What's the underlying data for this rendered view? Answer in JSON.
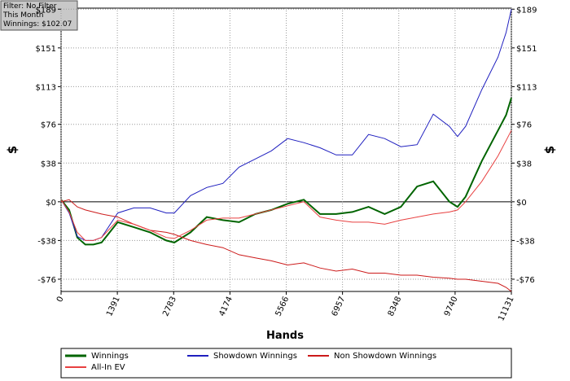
{
  "chart_data": {
    "type": "line",
    "filter_box": [
      "Filter: No Filter",
      "This Month",
      "Winnings: $102.07"
    ],
    "x_label": "Hands",
    "y_label": "$",
    "xlim": [
      0,
      11131
    ],
    "xticks": [
      0,
      1391,
      2783,
      4174,
      5566,
      6957,
      8348,
      9740,
      11131
    ],
    "ylim": [
      -88,
      190
    ],
    "yticks": [
      {
        "value": 189,
        "label": "$189"
      },
      {
        "value": 151,
        "label": "$151"
      },
      {
        "value": 113,
        "label": "$113"
      },
      {
        "value": 76,
        "label": "$76"
      },
      {
        "value": 38,
        "label": "$38"
      },
      {
        "value": 0,
        "label": "$0"
      },
      {
        "value": -38,
        "label": "-$38"
      },
      {
        "value": -76,
        "label": "-$76"
      }
    ],
    "grid": true,
    "legend": "bottom",
    "x": [
      0,
      200,
      400,
      600,
      800,
      1000,
      1400,
      1800,
      2200,
      2600,
      2800,
      3200,
      3600,
      4000,
      4400,
      4800,
      5200,
      5600,
      6000,
      6400,
      6800,
      7200,
      7600,
      8000,
      8400,
      8800,
      9200,
      9600,
      9800,
      10000,
      10400,
      10800,
      11000,
      11131
    ],
    "series": [
      {
        "name": "Winnings",
        "color": "#006400",
        "width": 2,
        "values": [
          2,
          -8,
          -35,
          -42,
          -42,
          -40,
          -20,
          -25,
          -30,
          -38,
          -40,
          -30,
          -15,
          -18,
          -20,
          -12,
          -8,
          -2,
          2,
          -12,
          -12,
          -10,
          -5,
          -12,
          -5,
          15,
          20,
          0,
          -5,
          5,
          40,
          70,
          85,
          102
        ]
      },
      {
        "name": "Showdown Winnings",
        "color": "#1f1fbf",
        "width": 1,
        "values": [
          2,
          -11,
          -34,
          -38,
          -38,
          -35,
          -11,
          -6,
          -6,
          -11,
          -11,
          6,
          14,
          18,
          34,
          42,
          50,
          62,
          58,
          53,
          46,
          46,
          66,
          62,
          54,
          56,
          86,
          74,
          64,
          74,
          110,
          142,
          166,
          189
        ]
      },
      {
        "name": "Non Showdown Winnings",
        "color": "#cc1a1a",
        "width": 1,
        "values": [
          0,
          2,
          -5,
          -8,
          -10,
          -12,
          -15,
          -22,
          -28,
          -30,
          -32,
          -38,
          -42,
          -45,
          -52,
          -55,
          -58,
          -62,
          -60,
          -65,
          -68,
          -66,
          -70,
          -70,
          -72,
          -72,
          -74,
          -75,
          -76,
          -76,
          -78,
          -80,
          -84,
          -88
        ]
      },
      {
        "name": "All-In EV",
        "color": "#e84040",
        "width": 1,
        "values": [
          2,
          -10,
          -30,
          -38,
          -38,
          -35,
          -18,
          -22,
          -28,
          -35,
          -36,
          -28,
          -18,
          -16,
          -16,
          -12,
          -8,
          -4,
          0,
          -15,
          -18,
          -20,
          -20,
          -22,
          -18,
          -15,
          -12,
          -10,
          -8,
          0,
          20,
          45,
          60,
          70
        ]
      }
    ]
  }
}
